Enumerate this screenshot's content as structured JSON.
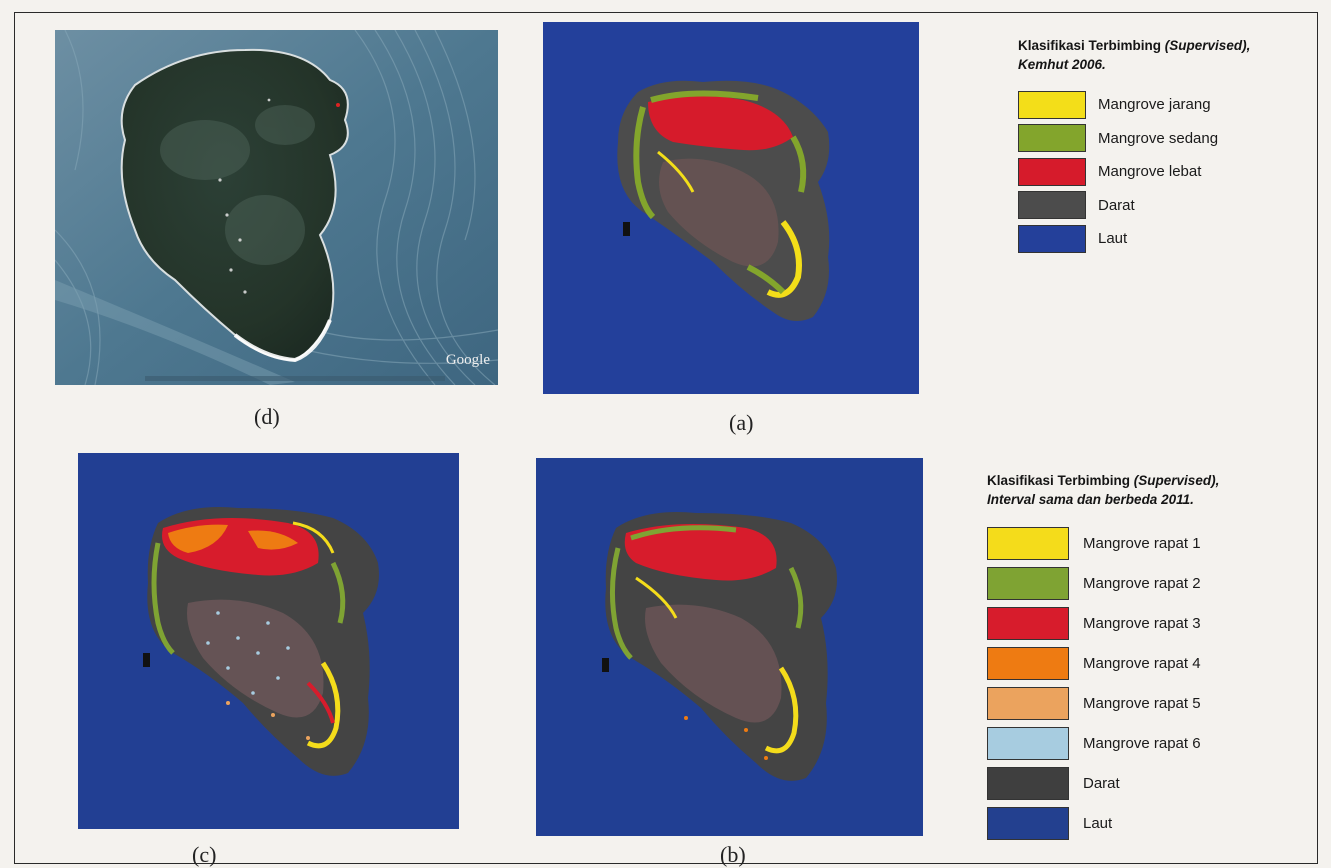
{
  "captions": {
    "d": "(d)",
    "a": "(a)",
    "c": "(c)",
    "b": "(b)"
  },
  "satellite": {
    "watermark": "Google"
  },
  "legend_top": {
    "title_line1_plain": "Klasifikasi Terbimbing ",
    "title_line1_italic": "(Supervised),",
    "title_line2_italic": "Kemhut 2006.",
    "items": [
      {
        "label": "Mangrove jarang",
        "color": "#f3de19"
      },
      {
        "label": "Mangrove sedang",
        "color": "#83a52c"
      },
      {
        "label": "Mangrove lebat",
        "color": "#d61b2b"
      },
      {
        "label": "Darat",
        "color": "#4c4c4c"
      },
      {
        "label": "Laut",
        "color": "#24409a"
      }
    ]
  },
  "legend_bottom": {
    "title_line1_plain": "Klasifikasi Terbimbing ",
    "title_line1_italic": "(Supervised),",
    "title_line2_italic": "Interval sama dan berbeda 2011.",
    "items": [
      {
        "label": "Mangrove rapat 1",
        "color": "#f4dc1b"
      },
      {
        "label": "Mangrove rapat 2",
        "color": "#7fa333"
      },
      {
        "label": "Mangrove rapat 3",
        "color": "#d71c2c"
      },
      {
        "label": "Mangrove rapat 4",
        "color": "#ee7b12"
      },
      {
        "label": "Mangrove rapat 5",
        "color": "#eba35e"
      },
      {
        "label": "Mangrove rapat 6",
        "color": "#a7cce0"
      },
      {
        "label": "Darat",
        "color": "#3f3f3f"
      },
      {
        "label": "Laut",
        "color": "#23408f"
      }
    ]
  }
}
